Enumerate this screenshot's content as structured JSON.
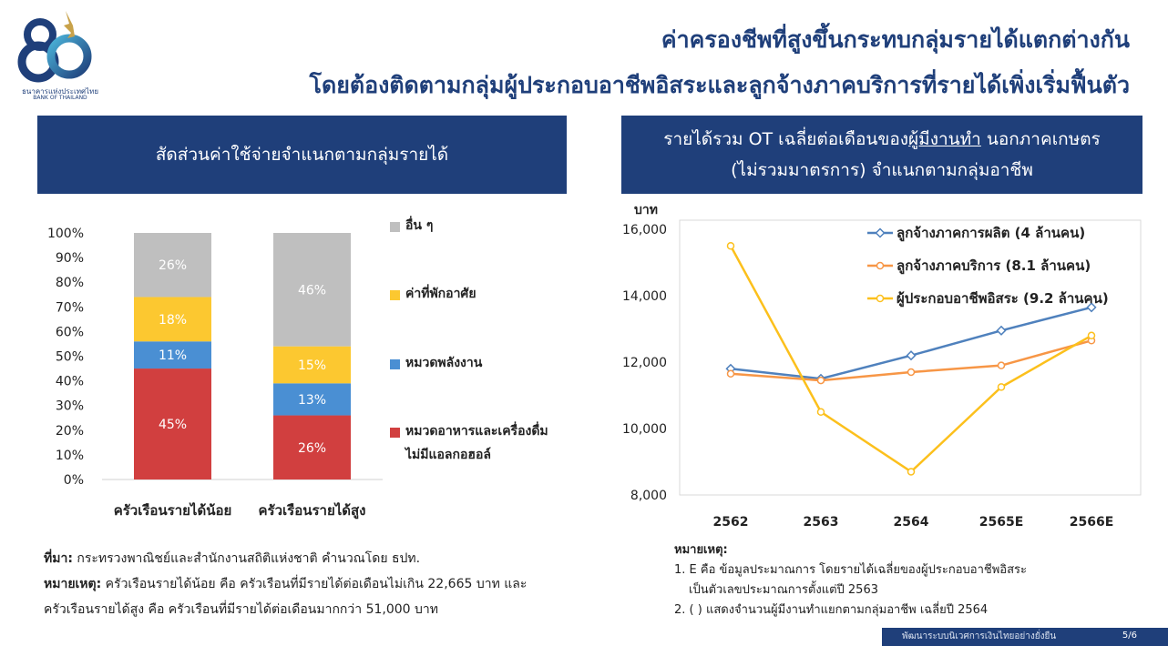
{
  "header": {
    "logo_th": "ธนาคารแห่งประเทศไทย",
    "logo_en": "BANK OF THAILAND",
    "title_line1": "ค่าครองชีพที่สูงขึ้นกระทบกลุ่มรายได้แตกต่างกัน",
    "title_line2": "โดยต้องติดตามกลุ่มผู้ประกอบอาชีพอิสระและลูกจ้างภาคบริการที่รายได้เพิ่งเริ่มฟื้นตัว"
  },
  "left_panel": {
    "heading": "สัดส่วนค่าใช้จ่ายจำแนกตามกลุ่มรายได้",
    "source_label": "ที่มา:",
    "source_text": " กระทรวงพาณิชย์และสำนักงานสถิติแห่งชาติ คำนวณโดย ธปท.",
    "note_label": "หมายเหตุ:",
    "note_text1": " ครัวเรือนรายได้น้อย คือ ครัวเรือนที่มีรายได้ต่อเดือนไม่เกิน 22,665 บาท และ",
    "note_text2": "ครัวเรือนรายได้สูง คือ ครัวเรือนที่มีรายได้ต่อเดือนมากกว่า 51,000 บาท"
  },
  "right_panel": {
    "heading_pre": "รายได้รวม OT เฉลี่ยต่อเดือนของ",
    "heading_underlined": "ผู้มีงานทำ",
    "heading_post": " นอกภาคเกษตร",
    "heading_line2": "(ไม่รวมมาตรการ) จำแนกตามกลุ่มอาชีพ",
    "notes_title": "หมายเหตุ:",
    "note1_line1": "1. E คือ ข้อมูลประมาณการ โดยรายได้เฉลี่ยของผู้ประกอบอาชีพอิสระ",
    "note1_line2": "เป็นตัวเลขประมาณการตั้งแต่ปี 2563",
    "note2": "2. ( ) แสดงจำนวนผู้มีงานทำแยกตามกลุ่มอาชีพ เฉลี่ยปี 2564"
  },
  "footer": {
    "text": "พัฒนาระบบนิเวศการเงินไทยอย่างยั่งยืน",
    "page": "5/6"
  },
  "chart_data": [
    {
      "type": "bar",
      "stacked": true,
      "categories": [
        "ครัวเรือนรายได้น้อย",
        "ครัวเรือนรายได้สูง"
      ],
      "y_ticks": [
        "0%",
        "10%",
        "20%",
        "30%",
        "40%",
        "50%",
        "60%",
        "70%",
        "80%",
        "90%",
        "100%"
      ],
      "ylim": [
        0,
        100
      ],
      "legend_position": "right",
      "series": [
        {
          "name": "หมวดอาหารและเครื่องดื่มไม่มีแอลกอฮอล์",
          "name_line1": "หมวดอาหารและเครื่องดื่ม",
          "name_line2": "ไม่มีแอลกอฮอล์",
          "values": [
            45,
            26
          ],
          "labels": [
            "45%",
            "26%"
          ],
          "color": "#d13f3f"
        },
        {
          "name": "หมวดพลังงาน",
          "values": [
            11,
            13
          ],
          "labels": [
            "11%",
            "13%"
          ],
          "color": "#4a8fd3"
        },
        {
          "name": "ค่าที่พักอาศัย",
          "values": [
            18,
            15
          ],
          "labels": [
            "18%",
            "15%"
          ],
          "color": "#fcc830"
        },
        {
          "name": "อื่น ๆ",
          "values": [
            26,
            46
          ],
          "labels": [
            "26%",
            "46%"
          ],
          "color": "#bfbfbf"
        }
      ]
    },
    {
      "type": "line",
      "ylabel": "บาท",
      "x": [
        "2562",
        "2563",
        "2564",
        "2565E",
        "2566E"
      ],
      "y_ticks": [
        "8,000",
        "10,000",
        "12,000",
        "14,000",
        "16,000"
      ],
      "ylim": [
        8000,
        16000
      ],
      "legend_position": "top-right",
      "series": [
        {
          "name": "ลูกจ้างภาคการผลิต (4 ล้านคน)",
          "values": [
            11800,
            11500,
            12200,
            12950,
            13650
          ],
          "color": "#4f81bd",
          "marker": "diamond"
        },
        {
          "name": "ลูกจ้างภาคบริการ (8.1 ล้านคน)",
          "values": [
            11650,
            11450,
            11700,
            11900,
            12650
          ],
          "color": "#f79646",
          "marker": "circle"
        },
        {
          "name": "ผู้ประกอบอาชีพอิสระ (9.2 ล้านคน)",
          "values": [
            15500,
            10500,
            8700,
            11250,
            12800
          ],
          "color": "#fcc01c",
          "marker": "circle"
        }
      ]
    }
  ]
}
